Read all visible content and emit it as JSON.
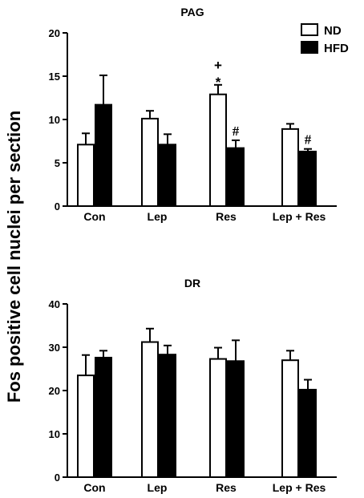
{
  "shared_ylabel": "Fos positive cell nuclei per section",
  "chart_data": [
    {
      "type": "bar",
      "title": "PAG",
      "ylabel": "Fos positive cell nuclei per section",
      "categories": [
        "Con",
        "Lep",
        "Res",
        "Lep + Res"
      ],
      "ylim": [
        0,
        20
      ],
      "yticks": [
        "0",
        "5",
        "10",
        "15",
        "20"
      ],
      "legend_position": "top-right",
      "series": [
        {
          "name": "ND",
          "fill": "#ffffff",
          "values": [
            7.1,
            10.1,
            12.9,
            8.9
          ],
          "errors": [
            1.3,
            0.9,
            1.1,
            0.6
          ]
        },
        {
          "name": "HFD",
          "fill": "#000000",
          "values": [
            11.7,
            7.1,
            6.7,
            6.3
          ],
          "errors": [
            3.4,
            1.2,
            0.9,
            0.3
          ]
        }
      ],
      "annotations": [
        {
          "category": "Res",
          "series": "ND",
          "marks": [
            "+",
            "*"
          ]
        },
        {
          "category": "Res",
          "series": "HFD",
          "marks": [
            "#"
          ]
        },
        {
          "category": "Lep + Res",
          "series": "HFD",
          "marks": [
            "#"
          ]
        }
      ]
    },
    {
      "type": "bar",
      "title": "DR",
      "ylabel": "Fos positive cell nuclei per section",
      "categories": [
        "Con",
        "Lep",
        "Res",
        "Lep + Res"
      ],
      "ylim": [
        0,
        40
      ],
      "yticks": [
        "0",
        "10",
        "20",
        "30",
        "40"
      ],
      "series": [
        {
          "name": "ND",
          "fill": "#ffffff",
          "values": [
            23.5,
            31.2,
            27.3,
            27.0
          ],
          "errors": [
            4.7,
            3.1,
            2.6,
            2.2
          ]
        },
        {
          "name": "HFD",
          "fill": "#000000",
          "values": [
            27.6,
            28.3,
            26.8,
            20.2
          ],
          "errors": [
            1.6,
            2.1,
            4.8,
            2.3
          ]
        }
      ],
      "annotations": []
    }
  ]
}
